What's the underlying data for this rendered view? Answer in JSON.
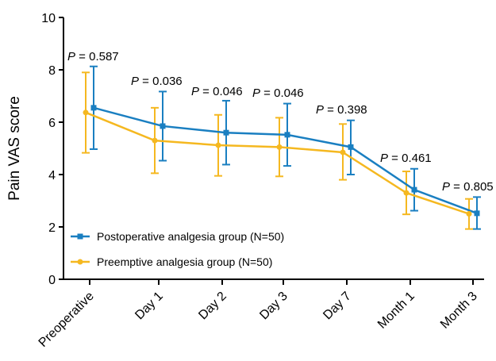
{
  "chart_data": {
    "type": "line",
    "title": "",
    "xlabel": "",
    "ylabel": "Pain VAS score",
    "ylim": [
      0,
      10
    ],
    "yticks": [
      "0",
      "2",
      "4",
      "6",
      "8",
      "10"
    ],
    "categories": [
      "Preoperative",
      "Day 1",
      "Day 2",
      "Day 3",
      "Day 7",
      "Month 1",
      "Month 3"
    ],
    "series": [
      {
        "name": "Postoperative analgesia group (N=50)",
        "color": "#1a7fc1",
        "marker": "square",
        "values": [
          6.55,
          5.85,
          5.6,
          5.52,
          5.05,
          3.42,
          2.52
        ],
        "err_low": [
          4.97,
          4.53,
          4.38,
          4.33,
          4.0,
          2.62,
          1.92
        ],
        "err_high": [
          8.13,
          7.17,
          6.82,
          6.71,
          6.07,
          4.22,
          3.14
        ]
      },
      {
        "name": "Preemptive analgesia group (N=50)",
        "color": "#f5b820",
        "marker": "circle",
        "values": [
          6.37,
          5.3,
          5.12,
          5.05,
          4.85,
          3.3,
          2.5
        ],
        "err_low": [
          4.83,
          4.05,
          3.95,
          3.93,
          3.8,
          2.48,
          1.92
        ],
        "err_high": [
          7.9,
          6.55,
          6.28,
          6.17,
          5.93,
          4.12,
          3.07
        ]
      }
    ],
    "annotations": [
      "P = 0.587",
      "P = 0.036",
      "P = 0.046",
      "P = 0.046",
      "P = 0.398",
      "P = 0.461",
      "P = 0.805"
    ],
    "legend_position": "bottom-left",
    "grid": false
  }
}
